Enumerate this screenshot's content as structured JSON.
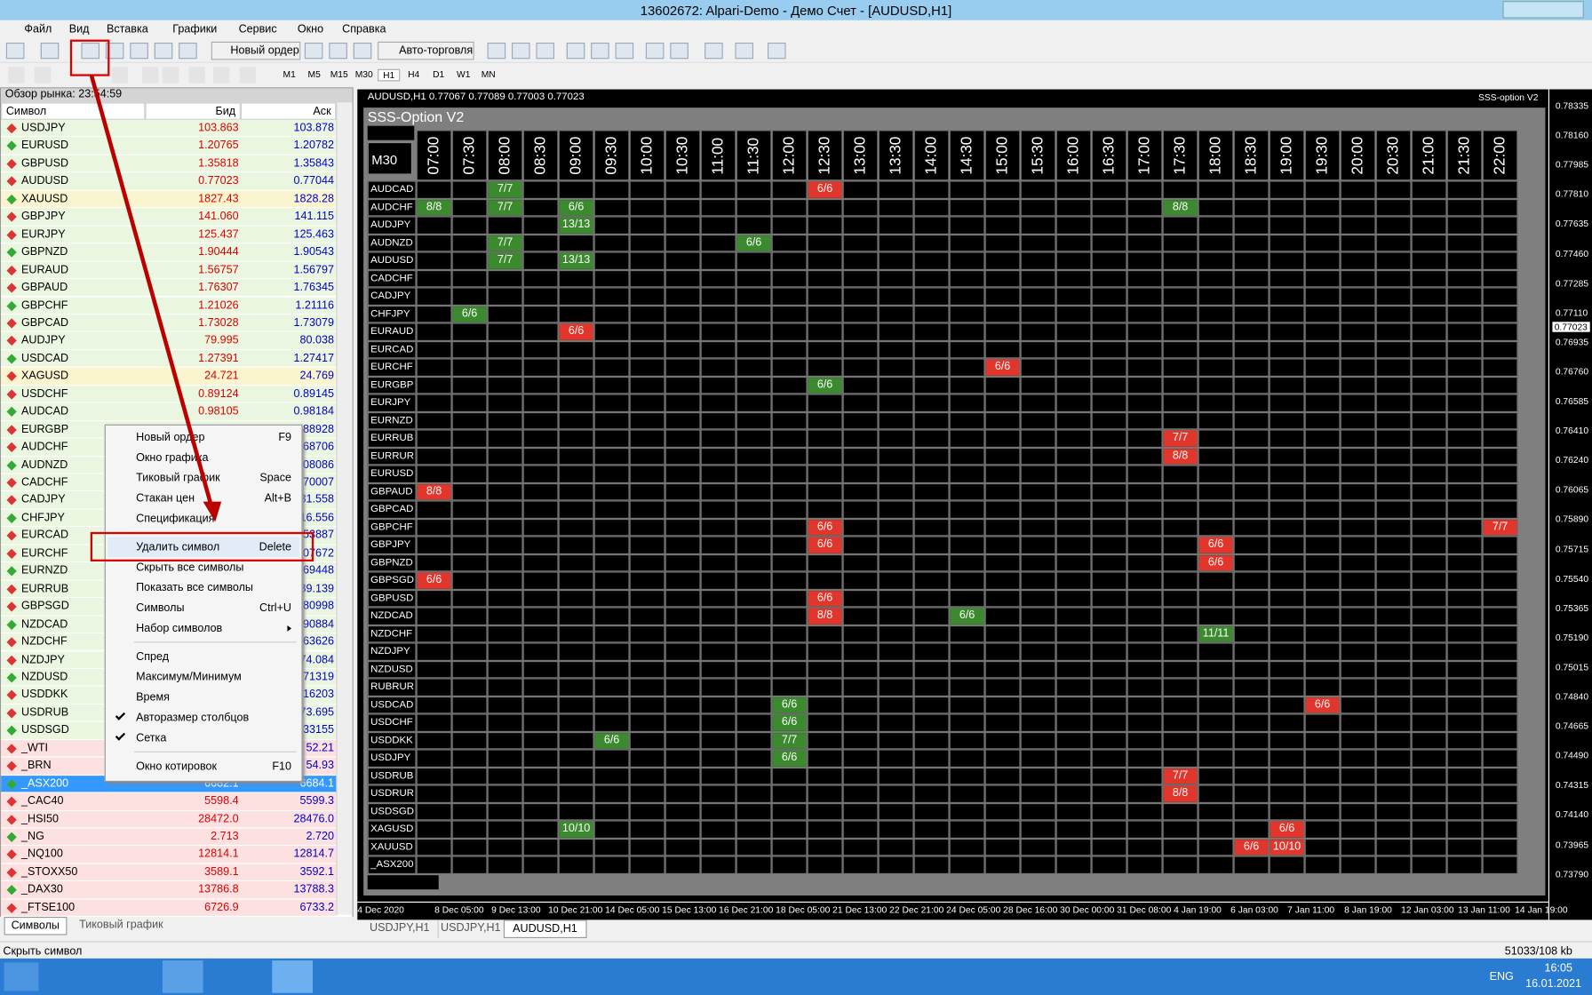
{
  "window": {
    "title": "13602672: Alpari-Demo - Демо Счет - [AUDUSD,H1]"
  },
  "menu": [
    "Файл",
    "Вид",
    "Вставка",
    "Графики",
    "Сервис",
    "Окно",
    "Справка"
  ],
  "toolbar": {
    "new_order": "Новый ордер",
    "auto_trading": "Авто-торговля",
    "timeframes": [
      "M1",
      "M5",
      "M15",
      "M30",
      "H1",
      "H4",
      "D1",
      "W1",
      "MN"
    ]
  },
  "market_watch": {
    "title": "Обзор рынка: 23:54:59",
    "columns": [
      "Символ",
      "Бид",
      "Аск"
    ],
    "rows": [
      [
        "USDJPY",
        "103.863",
        "103.878"
      ],
      [
        "EURUSD",
        "1.20765",
        "1.20782"
      ],
      [
        "GBPUSD",
        "1.35818",
        "1.35843"
      ],
      [
        "AUDUSD",
        "0.77023",
        "0.77044"
      ],
      [
        "XAUUSD",
        "1827.43",
        "1828.28"
      ],
      [
        "GBPJPY",
        "141.060",
        "141.115"
      ],
      [
        "EURJPY",
        "125.437",
        "125.463"
      ],
      [
        "GBPNZD",
        "1.90444",
        "1.90543"
      ],
      [
        "EURAUD",
        "1.56757",
        "1.56797"
      ],
      [
        "GBPAUD",
        "1.76307",
        "1.76345"
      ],
      [
        "GBPCHF",
        "1.21026",
        "1.21116"
      ],
      [
        "GBPCAD",
        "1.73028",
        "1.73079"
      ],
      [
        "AUDJPY",
        "79.995",
        "80.038"
      ],
      [
        "USDCAD",
        "1.27391",
        "1.27417"
      ],
      [
        "XAGUSD",
        "24.721",
        "24.769"
      ],
      [
        "USDCHF",
        "0.89124",
        "0.89145"
      ],
      [
        "AUDCAD",
        "0.98105",
        "0.98184"
      ],
      [
        "EURGBP",
        null,
        ".88928"
      ],
      [
        "AUDCHF",
        null,
        ".68706"
      ],
      [
        "AUDNZD",
        null,
        ".08086"
      ],
      [
        "CADCHF",
        null,
        ".70007"
      ],
      [
        "CADJPY",
        null,
        "81.558"
      ],
      [
        "CHFJPY",
        null,
        "16.556"
      ],
      [
        "EURCAD",
        null,
        ".53887"
      ],
      [
        "EURCHF",
        null,
        ".07672"
      ],
      [
        "EURNZD",
        null,
        ".69448"
      ],
      [
        "EURRUB",
        null,
        "89.139"
      ],
      [
        "GBPSGD",
        null,
        ".80998"
      ],
      [
        "NZDCAD",
        null,
        ".90884"
      ],
      [
        "NZDCHF",
        null,
        ".63626"
      ],
      [
        "NZDJPY",
        null,
        "74.084"
      ],
      [
        "NZDUSD",
        null,
        ".71319"
      ],
      [
        "USDDKK",
        null,
        ".16203"
      ],
      [
        "USDRUB",
        null,
        "73.695"
      ],
      [
        "USDSGD",
        null,
        ".33155"
      ],
      [
        "_WTI",
        null,
        "52.21"
      ],
      [
        "_BRN",
        null,
        "54.93"
      ],
      [
        "_ASX200",
        "6682.1",
        "6684.1"
      ],
      [
        "_CAC40",
        "5598.4",
        "5599.3"
      ],
      [
        "_HSI50",
        "28472.0",
        "28476.0"
      ],
      [
        "_NG",
        "2.713",
        "2.720"
      ],
      [
        "_NQ100",
        "12814.1",
        "12814.7"
      ],
      [
        "_STOXX50",
        "3589.1",
        "3592.1"
      ],
      [
        "_DAX30",
        "13786.8",
        "13788.3"
      ],
      [
        "_FTSE100",
        "6726.9",
        "6733.2"
      ]
    ],
    "selected": "_ASX200",
    "tabs": [
      "Символы",
      "Тиковый график"
    ]
  },
  "context_menu": {
    "items": [
      {
        "label": "Новый ордер",
        "shortcut": "F9"
      },
      {
        "label": "Окно графика"
      },
      {
        "label": "Тиковый график",
        "shortcut": "Space"
      },
      {
        "label": "Стакан цен",
        "shortcut": "Alt+B"
      },
      {
        "label": "Спецификация"
      },
      {
        "label": "Удалить символ",
        "shortcut": "Delete",
        "sep": true,
        "highlight": true
      },
      {
        "label": "Скрыть все символы"
      },
      {
        "label": "Показать все символы"
      },
      {
        "label": "Символы",
        "shortcut": "Ctrl+U"
      },
      {
        "label": "Набор символов",
        "submenu": true
      },
      {
        "label": "Спред",
        "sep": true
      },
      {
        "label": "Максимум/Минимум"
      },
      {
        "label": "Время"
      },
      {
        "label": "Авторазмер столбцов",
        "checked": true
      },
      {
        "label": "Сетка",
        "checked": true
      },
      {
        "label": "Окно котировок",
        "shortcut": "F10",
        "sep": true
      }
    ]
  },
  "chart": {
    "header": "AUDUSD,H1  0.77067 0.77089 0.77003 0.77023",
    "indicator": "SSS-option V2",
    "price_labels": [
      "0.78335",
      "0.78160",
      "0.77985",
      "0.77810",
      "0.77635",
      "0.77460",
      "0.77285",
      "0.77110",
      "0.76935",
      "0.76760",
      "0.76585",
      "0.76410",
      "0.76240",
      "0.76065",
      "0.75890",
      "0.75715",
      "0.75540",
      "0.75365",
      "0.75190",
      "0.75015",
      "0.74840",
      "0.74665",
      "0.74490",
      "0.74315",
      "0.74140",
      "0.73965",
      "0.73790"
    ],
    "current_price": "0.77023",
    "time_labels": [
      "4 Dec 2020",
      "8 Dec 05:00",
      "9 Dec 13:00",
      "10 Dec 21:00",
      "14 Dec 05:00",
      "15 Dec 13:00",
      "16 Dec 21:00",
      "18 Dec 05:00",
      "21 Dec 13:00",
      "22 Dec 21:00",
      "24 Dec 05:00",
      "28 Dec 16:00",
      "30 Dec 00:00",
      "31 Dec 08:00",
      "4 Jan 19:00",
      "6 Jan 03:00",
      "7 Jan 11:00",
      "8 Jan 19:00",
      "12 Jan 03:00",
      "13 Jan 11:00",
      "14 Jan 19:00"
    ],
    "tabs": [
      "USDJPY,H1",
      "USDJPY,H1",
      "AUDUSD,H1"
    ],
    "active_tab": 2
  },
  "panel": {
    "title": "SSS-Option V2",
    "timeframe": "M30",
    "times": [
      "07:00",
      "07:30",
      "08:00",
      "08:30",
      "09:00",
      "09:30",
      "10:00",
      "10:30",
      "11:00",
      "11:30",
      "12:00",
      "12:30",
      "13:00",
      "13:30",
      "14:00",
      "14:30",
      "15:00",
      "15:30",
      "16:00",
      "16:30",
      "17:00",
      "17:30",
      "18:00",
      "18:30",
      "19:00",
      "19:30",
      "20:00",
      "20:30",
      "21:00",
      "21:30",
      "22:00"
    ],
    "symbols": [
      {
        "name": "AUDCAD",
        "signals": [
          {
            "time": "08:00",
            "text": "7/7",
            "color": "green"
          },
          {
            "time": "12:30",
            "text": "6/6",
            "color": "red"
          }
        ]
      },
      {
        "name": "AUDCHF",
        "signals": [
          {
            "time": "07:00",
            "text": "8/8",
            "color": "green"
          },
          {
            "time": "08:00",
            "text": "7/7",
            "color": "green"
          },
          {
            "time": "09:00",
            "text": "6/6",
            "color": "green"
          },
          {
            "time": "17:30",
            "text": "8/8",
            "color": "green"
          }
        ]
      },
      {
        "name": "AUDJPY",
        "signals": [
          {
            "time": "09:00",
            "text": "13/13",
            "color": "green"
          }
        ]
      },
      {
        "name": "AUDNZD",
        "signals": [
          {
            "time": "08:00",
            "text": "7/7",
            "color": "green"
          },
          {
            "time": "11:30",
            "text": "6/6",
            "color": "green"
          }
        ]
      },
      {
        "name": "AUDUSD",
        "signals": [
          {
            "time": "08:00",
            "text": "7/7",
            "color": "green"
          },
          {
            "time": "09:00",
            "text": "13/13",
            "color": "green"
          }
        ]
      },
      {
        "name": "CADCHF",
        "signals": []
      },
      {
        "name": "CADJPY",
        "signals": []
      },
      {
        "name": "CHFJPY",
        "signals": [
          {
            "time": "07:30",
            "text": "6/6",
            "color": "green"
          }
        ]
      },
      {
        "name": "EURAUD",
        "signals": [
          {
            "time": "09:00",
            "text": "6/6",
            "color": "red"
          }
        ]
      },
      {
        "name": "EURCAD",
        "signals": []
      },
      {
        "name": "EURCHF",
        "signals": [
          {
            "time": "15:00",
            "text": "6/6",
            "color": "red"
          }
        ]
      },
      {
        "name": "EURGBP",
        "signals": [
          {
            "time": "12:30",
            "text": "6/6",
            "color": "green"
          }
        ]
      },
      {
        "name": "EURJPY",
        "signals": []
      },
      {
        "name": "EURNZD",
        "signals": []
      },
      {
        "name": "EURRUB",
        "signals": [
          {
            "time": "17:30",
            "text": "7/7",
            "color": "red"
          }
        ]
      },
      {
        "name": "EURRUR",
        "signals": [
          {
            "time": "17:30",
            "text": "8/8",
            "color": "red"
          }
        ]
      },
      {
        "name": "EURUSD",
        "signals": []
      },
      {
        "name": "GBPAUD",
        "signals": [
          {
            "time": "07:00",
            "text": "8/8",
            "color": "red"
          }
        ]
      },
      {
        "name": "GBPCAD",
        "signals": []
      },
      {
        "name": "GBPCHF",
        "signals": [
          {
            "time": "12:30",
            "text": "6/6",
            "color": "red"
          },
          {
            "time": "22:00",
            "text": "7/7",
            "color": "red"
          }
        ]
      },
      {
        "name": "GBPJPY",
        "signals": [
          {
            "time": "12:30",
            "text": "6/6",
            "color": "red"
          },
          {
            "time": "18:00",
            "text": "6/6",
            "color": "red"
          }
        ]
      },
      {
        "name": "GBPNZD",
        "signals": [
          {
            "time": "18:00",
            "text": "6/6",
            "color": "red"
          }
        ]
      },
      {
        "name": "GBPSGD",
        "signals": [
          {
            "time": "07:00",
            "text": "6/6",
            "color": "red"
          }
        ]
      },
      {
        "name": "GBPUSD",
        "signals": [
          {
            "time": "12:30",
            "text": "6/6",
            "color": "red"
          }
        ]
      },
      {
        "name": "NZDCAD",
        "signals": [
          {
            "time": "12:30",
            "text": "8/8",
            "color": "red"
          },
          {
            "time": "14:30",
            "text": "6/6",
            "color": "green"
          }
        ]
      },
      {
        "name": "NZDCHF",
        "signals": [
          {
            "time": "18:00",
            "text": "11/11",
            "color": "green"
          }
        ]
      },
      {
        "name": "NZDJPY",
        "signals": []
      },
      {
        "name": "NZDUSD",
        "signals": []
      },
      {
        "name": "RUBRUR",
        "signals": []
      },
      {
        "name": "USDCAD",
        "signals": [
          {
            "time": "12:00",
            "text": "6/6",
            "color": "green"
          },
          {
            "time": "19:30",
            "text": "6/6",
            "color": "red"
          }
        ]
      },
      {
        "name": "USDCHF",
        "signals": [
          {
            "time": "12:00",
            "text": "6/6",
            "color": "green"
          }
        ]
      },
      {
        "name": "USDDKK",
        "signals": [
          {
            "time": "09:30",
            "text": "6/6",
            "color": "green"
          },
          {
            "time": "12:00",
            "text": "7/7",
            "color": "green"
          }
        ]
      },
      {
        "name": "USDJPY",
        "signals": [
          {
            "time": "12:00",
            "text": "6/6",
            "color": "green"
          }
        ]
      },
      {
        "name": "USDRUB",
        "signals": [
          {
            "time": "17:30",
            "text": "7/7",
            "color": "red"
          }
        ]
      },
      {
        "name": "USDRUR",
        "signals": [
          {
            "time": "17:30",
            "text": "8/8",
            "color": "red"
          }
        ]
      },
      {
        "name": "USDSGD",
        "signals": []
      },
      {
        "name": "XAGUSD",
        "signals": [
          {
            "time": "09:00",
            "text": "10/10",
            "color": "green"
          },
          {
            "time": "19:00",
            "text": "6/6",
            "color": "red"
          }
        ]
      },
      {
        "name": "XAUUSD",
        "signals": [
          {
            "time": "18:30",
            "text": "6/6",
            "color": "red"
          },
          {
            "time": "19:00",
            "text": "10/10",
            "color": "red"
          }
        ]
      },
      {
        "name": "_ASX200",
        "signals": []
      }
    ]
  },
  "status": {
    "text": "Скрыть символ",
    "traffic": "51033/108 kb"
  },
  "taskbar": {
    "lang": "ENG",
    "time": "16:05",
    "date": "16.01.2021"
  }
}
